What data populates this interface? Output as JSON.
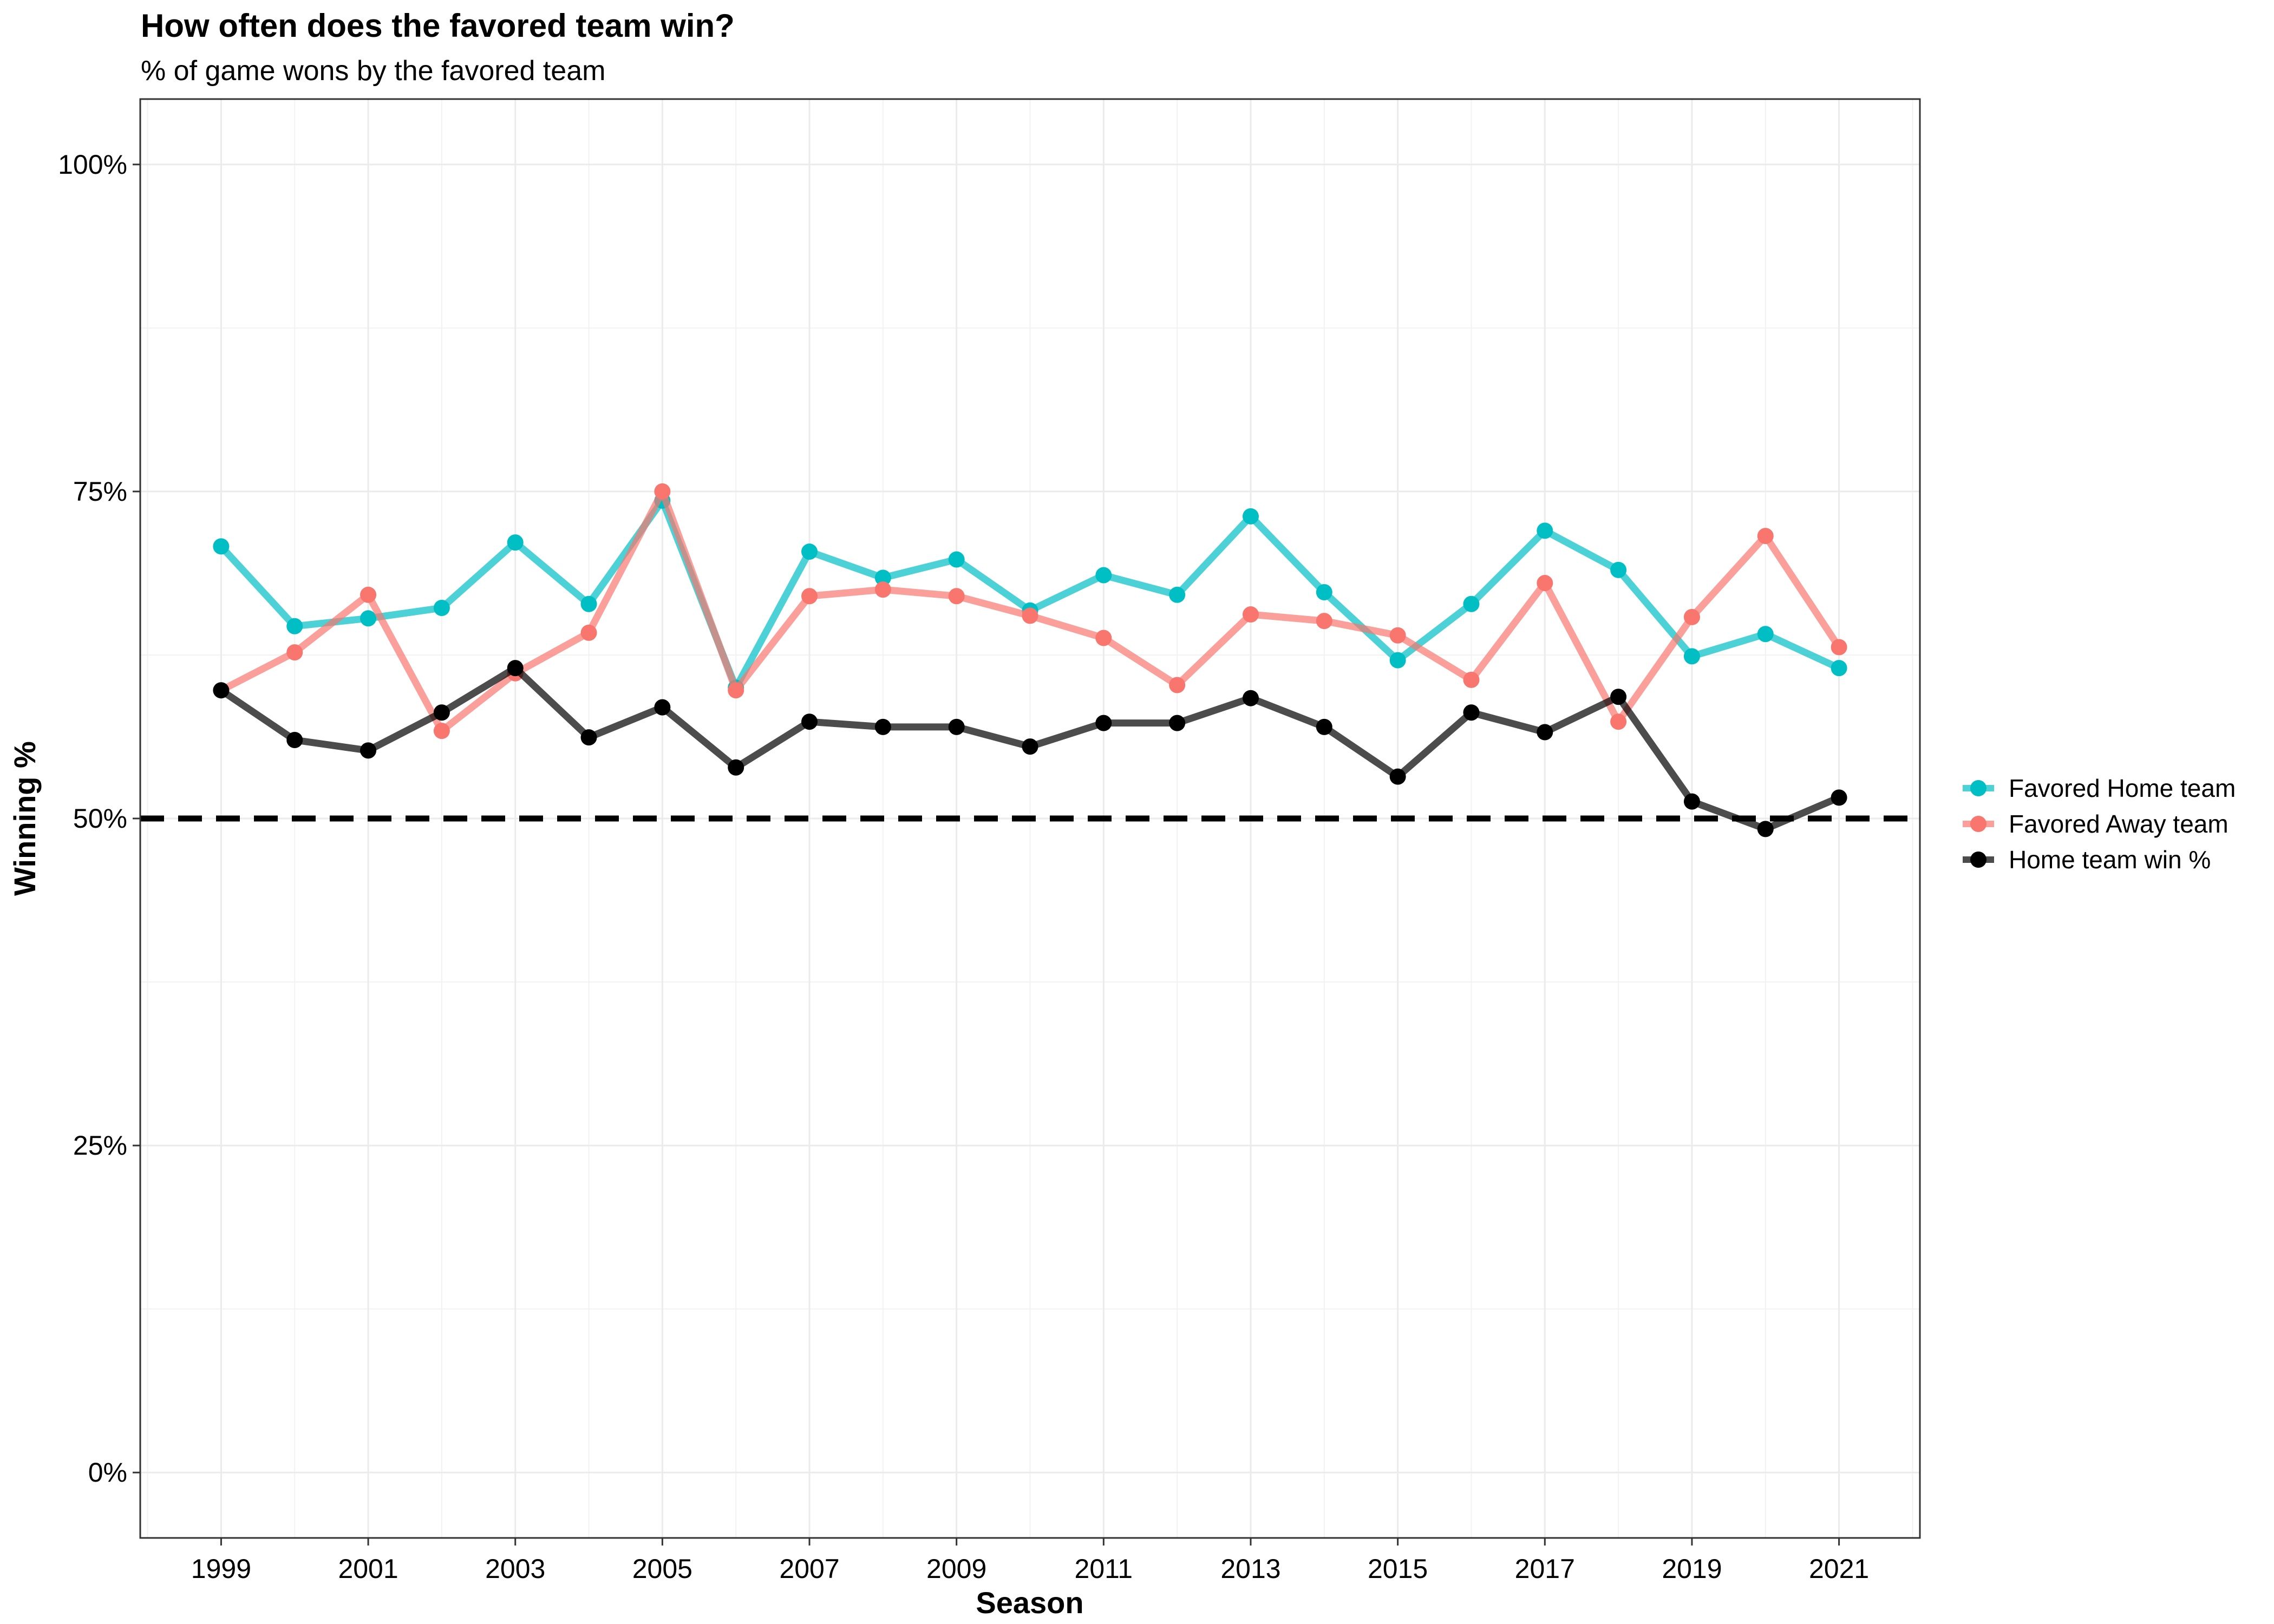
{
  "chart_data": {
    "type": "line",
    "title": "How often does the favored team win?",
    "subtitle": "% of game wons by the favored team",
    "xlabel": "Season",
    "ylabel": "Winning %",
    "xlim": [
      1997.9,
      2022.1
    ],
    "ylim": [
      -0.05,
      1.05
    ],
    "x_ticks": [
      1999,
      2001,
      2003,
      2005,
      2007,
      2009,
      2011,
      2013,
      2015,
      2017,
      2019,
      2021
    ],
    "y_ticks": [
      0,
      0.25,
      0.5,
      0.75,
      1.0
    ],
    "y_tick_labels": [
      "0%",
      "25%",
      "50%",
      "75%",
      "100%"
    ],
    "grid": true,
    "reference_line": {
      "y": 0.5,
      "style": "dashed",
      "color": "#000000"
    },
    "legend": {
      "position": "right"
    },
    "x": [
      1999,
      2000,
      2001,
      2002,
      2003,
      2004,
      2005,
      2006,
      2007,
      2008,
      2009,
      2010,
      2011,
      2012,
      2013,
      2014,
      2015,
      2016,
      2017,
      2018,
      2019,
      2020,
      2021
    ],
    "series": [
      {
        "name": "Favored Home team",
        "color": "#00BFC4",
        "values": [
          0.708,
          0.647,
          0.653,
          0.661,
          0.711,
          0.664,
          0.743,
          0.6,
          0.704,
          0.684,
          0.698,
          0.659,
          0.686,
          0.671,
          0.731,
          0.673,
          0.621,
          0.664,
          0.72,
          0.69,
          0.624,
          0.641,
          0.615
        ]
      },
      {
        "name": "Favored Away team",
        "color": "#F8766D",
        "values": [
          0.598,
          0.627,
          0.671,
          0.567,
          0.611,
          0.642,
          0.75,
          0.598,
          0.67,
          0.675,
          0.67,
          0.655,
          0.638,
          0.602,
          0.656,
          0.651,
          0.64,
          0.606,
          0.68,
          0.574,
          0.654,
          0.716,
          0.631
        ]
      },
      {
        "name": "Home team win %",
        "color": "#000000",
        "values": [
          0.598,
          0.56,
          0.552,
          0.581,
          0.615,
          0.562,
          0.585,
          0.539,
          0.574,
          0.57,
          0.57,
          0.555,
          0.573,
          0.573,
          0.592,
          0.57,
          0.532,
          0.581,
          0.566,
          0.593,
          0.513,
          0.492,
          0.516
        ]
      }
    ]
  }
}
